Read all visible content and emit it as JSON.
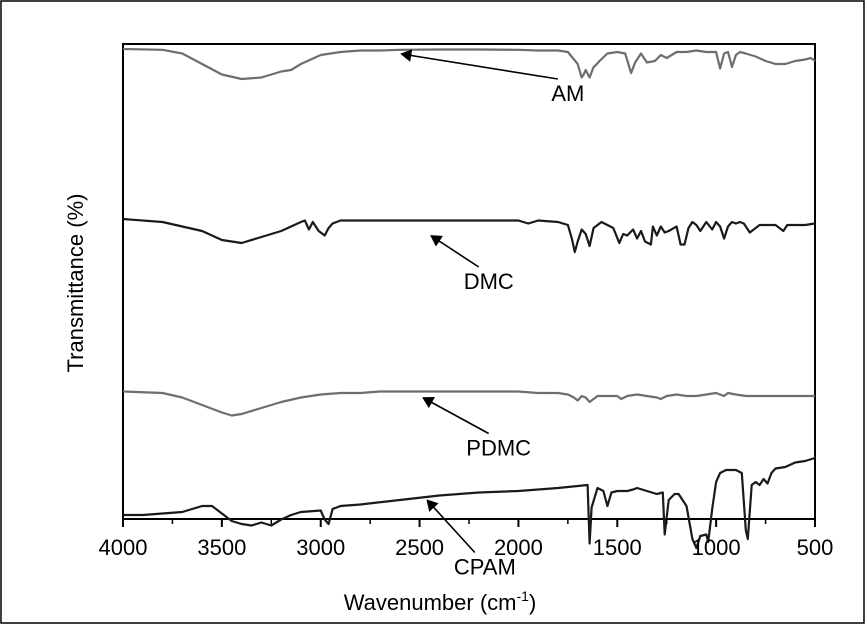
{
  "chart_data": {
    "type": "line",
    "xlabel": "Wavenumber (cm",
    "xlabel_sup": "-1",
    "xlabel_tail": ")",
    "ylabel": "Transmittance (%)",
    "xlim": [
      4000,
      500
    ],
    "x_reversed": true,
    "y_ticks_shown": false,
    "grid": false,
    "x_ticks": [
      4000,
      3500,
      3000,
      2500,
      2000,
      1500,
      1000,
      500
    ],
    "x_tick_labels": [
      "4000",
      "3500",
      "3000",
      "2500",
      "2000",
      "1500",
      "1000",
      "500"
    ],
    "series": [
      {
        "name": "AM",
        "color": "#6e6e6e",
        "label_pos": [
          1750,
          0.0
        ],
        "arrow_to": [
          2590,
          0.0
        ],
        "points": [
          [
            4000,
            0.0
          ],
          [
            3800,
            -0.5
          ],
          [
            3700,
            -3
          ],
          [
            3600,
            -10
          ],
          [
            3500,
            -17
          ],
          [
            3400,
            -20
          ],
          [
            3300,
            -19
          ],
          [
            3200,
            -15
          ],
          [
            3150,
            -14
          ],
          [
            3100,
            -10
          ],
          [
            3000,
            -4
          ],
          [
            2900,
            -2
          ],
          [
            2800,
            -1
          ],
          [
            2700,
            -1
          ],
          [
            2600,
            -0.5
          ],
          [
            2400,
            -0.3
          ],
          [
            2200,
            -0.3
          ],
          [
            2000,
            -0.5
          ],
          [
            1900,
            -1
          ],
          [
            1800,
            -1
          ],
          [
            1750,
            -2
          ],
          [
            1700,
            -10
          ],
          [
            1680,
            -19
          ],
          [
            1670,
            -17
          ],
          [
            1660,
            -14
          ],
          [
            1640,
            -19
          ],
          [
            1620,
            -12
          ],
          [
            1610,
            -11
          ],
          [
            1590,
            -8
          ],
          [
            1550,
            -3
          ],
          [
            1500,
            -2
          ],
          [
            1460,
            -3
          ],
          [
            1430,
            -16
          ],
          [
            1410,
            -9
          ],
          [
            1380,
            -3
          ],
          [
            1350,
            -9
          ],
          [
            1310,
            -8
          ],
          [
            1280,
            -4
          ],
          [
            1250,
            -6
          ],
          [
            1200,
            -2
          ],
          [
            1150,
            -2
          ],
          [
            1100,
            -1
          ],
          [
            1050,
            -2
          ],
          [
            1000,
            -2
          ],
          [
            980,
            -13
          ],
          [
            960,
            -3
          ],
          [
            940,
            -2
          ],
          [
            920,
            -12
          ],
          [
            900,
            -4
          ],
          [
            880,
            -2
          ],
          [
            850,
            -3
          ],
          [
            800,
            -5
          ],
          [
            750,
            -8
          ],
          [
            700,
            -10
          ],
          [
            650,
            -10
          ],
          [
            600,
            -8
          ],
          [
            550,
            -7
          ],
          [
            520,
            -6
          ],
          [
            500,
            -8
          ]
        ]
      },
      {
        "name": "DMC",
        "color": "#1a1a1a",
        "label_pos": [
          2150,
          -62
        ],
        "arrow_to": [
          2440,
          -58
        ],
        "points": [
          [
            4000,
            -50
          ],
          [
            3800,
            -52
          ],
          [
            3700,
            -55
          ],
          [
            3600,
            -58
          ],
          [
            3500,
            -64
          ],
          [
            3400,
            -66
          ],
          [
            3300,
            -62
          ],
          [
            3200,
            -58
          ],
          [
            3100,
            -52
          ],
          [
            3080,
            -51
          ],
          [
            3060,
            -57
          ],
          [
            3040,
            -52
          ],
          [
            3010,
            -58
          ],
          [
            2980,
            -61
          ],
          [
            2960,
            -56
          ],
          [
            2940,
            -53
          ],
          [
            2900,
            -51
          ],
          [
            2800,
            -51
          ],
          [
            2600,
            -51
          ],
          [
            2400,
            -51
          ],
          [
            2200,
            -51
          ],
          [
            2000,
            -51
          ],
          [
            1950,
            -53
          ],
          [
            1900,
            -51
          ],
          [
            1800,
            -52
          ],
          [
            1750,
            -54
          ],
          [
            1730,
            -63
          ],
          [
            1715,
            -72
          ],
          [
            1700,
            -65
          ],
          [
            1680,
            -57
          ],
          [
            1660,
            -60
          ],
          [
            1640,
            -68
          ],
          [
            1620,
            -56
          ],
          [
            1580,
            -52
          ],
          [
            1520,
            -56
          ],
          [
            1490,
            -66
          ],
          [
            1470,
            -60
          ],
          [
            1450,
            -61
          ],
          [
            1420,
            -57
          ],
          [
            1400,
            -63
          ],
          [
            1380,
            -58
          ],
          [
            1360,
            -65
          ],
          [
            1330,
            -67
          ],
          [
            1320,
            -55
          ],
          [
            1300,
            -61
          ],
          [
            1280,
            -55
          ],
          [
            1260,
            -59
          ],
          [
            1240,
            -58
          ],
          [
            1200,
            -55
          ],
          [
            1180,
            -67
          ],
          [
            1160,
            -67
          ],
          [
            1140,
            -56
          ],
          [
            1120,
            -52
          ],
          [
            1100,
            -54
          ],
          [
            1080,
            -58
          ],
          [
            1050,
            -52
          ],
          [
            1020,
            -57
          ],
          [
            1000,
            -52
          ],
          [
            980,
            -55
          ],
          [
            960,
            -63
          ],
          [
            940,
            -55
          ],
          [
            920,
            -52
          ],
          [
            900,
            -53
          ],
          [
            880,
            -52
          ],
          [
            860,
            -53
          ],
          [
            830,
            -59
          ],
          [
            800,
            -56
          ],
          [
            780,
            -54
          ],
          [
            750,
            -54
          ],
          [
            700,
            -54
          ],
          [
            660,
            -58
          ],
          [
            640,
            -54
          ],
          [
            600,
            -54
          ],
          [
            550,
            -54
          ],
          [
            500,
            -53
          ]
        ]
      },
      {
        "name": "PDMC",
        "color": "#6e6e6e",
        "label_pos": [
          2100,
          -107
        ],
        "arrow_to": [
          2480,
          -100
        ],
        "points": [
          [
            4000,
            -99
          ],
          [
            3800,
            -100
          ],
          [
            3700,
            -103
          ],
          [
            3600,
            -108
          ],
          [
            3500,
            -113
          ],
          [
            3450,
            -115
          ],
          [
            3400,
            -114
          ],
          [
            3300,
            -110
          ],
          [
            3200,
            -106
          ],
          [
            3100,
            -103
          ],
          [
            3000,
            -101
          ],
          [
            2900,
            -100
          ],
          [
            2800,
            -100
          ],
          [
            2700,
            -99
          ],
          [
            2600,
            -99
          ],
          [
            2400,
            -99
          ],
          [
            2200,
            -99
          ],
          [
            2000,
            -99
          ],
          [
            1900,
            -100
          ],
          [
            1800,
            -100
          ],
          [
            1750,
            -101
          ],
          [
            1720,
            -103
          ],
          [
            1700,
            -105
          ],
          [
            1680,
            -102
          ],
          [
            1660,
            -103
          ],
          [
            1640,
            -106
          ],
          [
            1620,
            -104
          ],
          [
            1600,
            -102
          ],
          [
            1550,
            -102
          ],
          [
            1500,
            -102
          ],
          [
            1480,
            -104
          ],
          [
            1450,
            -102
          ],
          [
            1400,
            -101
          ],
          [
            1350,
            -102
          ],
          [
            1300,
            -103
          ],
          [
            1280,
            -104
          ],
          [
            1250,
            -102
          ],
          [
            1200,
            -101
          ],
          [
            1150,
            -102
          ],
          [
            1100,
            -102
          ],
          [
            1050,
            -101
          ],
          [
            1000,
            -100
          ],
          [
            980,
            -101
          ],
          [
            960,
            -102
          ],
          [
            940,
            -100
          ],
          [
            900,
            -101
          ],
          [
            850,
            -102
          ],
          [
            800,
            -102
          ],
          [
            750,
            -102
          ],
          [
            700,
            -102
          ],
          [
            600,
            -102
          ],
          [
            500,
            -102
          ]
        ]
      },
      {
        "name": "CPAM",
        "color": "#1a1a1a",
        "label_pos": [
          2170,
          -175
        ],
        "arrow_to": [
          2460,
          -157
        ],
        "points": [
          [
            4000,
            -170
          ],
          [
            3900,
            -170
          ],
          [
            3800,
            -169
          ],
          [
            3700,
            -168
          ],
          [
            3650,
            -166
          ],
          [
            3600,
            -164
          ],
          [
            3550,
            -164
          ],
          [
            3500,
            -169
          ],
          [
            3450,
            -174
          ],
          [
            3400,
            -176
          ],
          [
            3350,
            -177
          ],
          [
            3300,
            -175
          ],
          [
            3250,
            -177
          ],
          [
            3200,
            -173
          ],
          [
            3150,
            -170
          ],
          [
            3100,
            -168
          ],
          [
            3000,
            -167
          ],
          [
            2980,
            -173
          ],
          [
            2960,
            -176
          ],
          [
            2940,
            -166
          ],
          [
            2900,
            -164
          ],
          [
            2800,
            -163
          ],
          [
            2600,
            -160
          ],
          [
            2400,
            -157
          ],
          [
            2200,
            -155
          ],
          [
            2000,
            -154
          ],
          [
            1800,
            -152
          ],
          [
            1650,
            -150
          ],
          [
            1640,
            -189
          ],
          [
            1630,
            -165
          ],
          [
            1600,
            -152
          ],
          [
            1570,
            -154
          ],
          [
            1550,
            -164
          ],
          [
            1530,
            -155
          ],
          [
            1500,
            -154
          ],
          [
            1450,
            -154
          ],
          [
            1420,
            -153
          ],
          [
            1400,
            -152
          ],
          [
            1350,
            -154
          ],
          [
            1300,
            -156
          ],
          [
            1270,
            -155
          ],
          [
            1260,
            -183
          ],
          [
            1240,
            -160
          ],
          [
            1210,
            -156
          ],
          [
            1190,
            -156
          ],
          [
            1150,
            -164
          ],
          [
            1120,
            -186
          ],
          [
            1100,
            -192
          ],
          [
            1080,
            -184
          ],
          [
            1050,
            -183
          ],
          [
            1040,
            -188
          ],
          [
            1020,
            -166
          ],
          [
            1000,
            -148
          ],
          [
            980,
            -142
          ],
          [
            950,
            -140
          ],
          [
            900,
            -140
          ],
          [
            870,
            -142
          ],
          [
            850,
            -180
          ],
          [
            840,
            -186
          ],
          [
            820,
            -150
          ],
          [
            800,
            -148
          ],
          [
            780,
            -150
          ],
          [
            760,
            -146
          ],
          [
            740,
            -149
          ],
          [
            720,
            -142
          ],
          [
            700,
            -139
          ],
          [
            650,
            -138
          ],
          [
            600,
            -135
          ],
          [
            550,
            -134
          ],
          [
            500,
            -132
          ]
        ]
      }
    ]
  }
}
